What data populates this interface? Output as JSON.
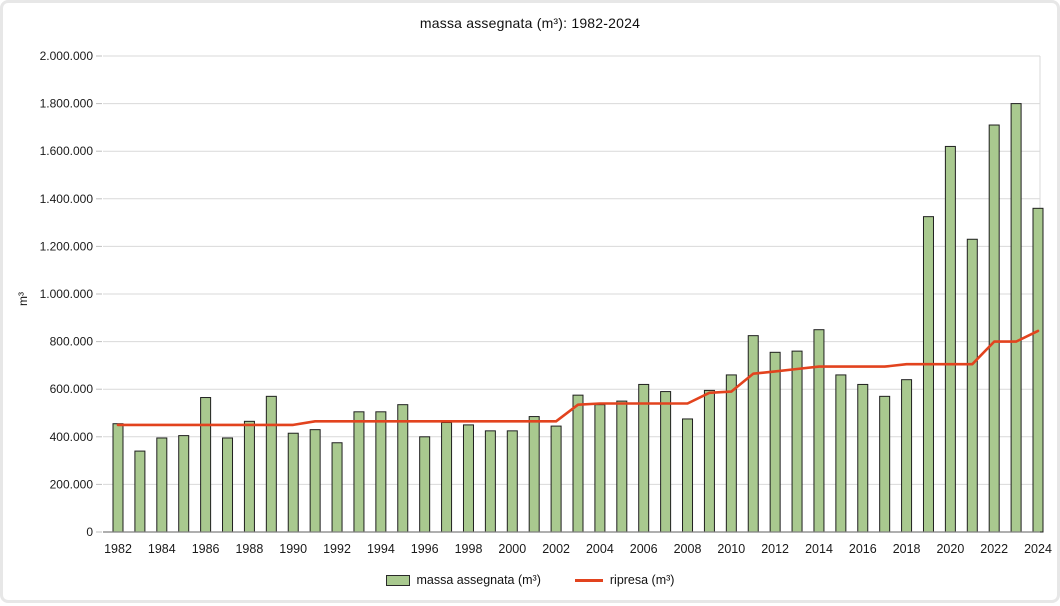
{
  "chart": {
    "title": "massa assegnata (m³): 1982-2024",
    "y_axis_label": "m³",
    "legend": [
      {
        "label": "massa assegnata (m³)",
        "swatch": "bar-swatch",
        "color": "#a9c98f"
      },
      {
        "label": "ripresa (m³)",
        "swatch": "line-swatch",
        "color": "#e2431e"
      }
    ]
  },
  "chart_data": {
    "type": "bar",
    "title": "massa assegnata (m³): 1982-2024",
    "xlabel": "",
    "ylabel": "m³",
    "ylim": [
      0,
      2000000
    ],
    "y_tick_step": 200000,
    "x_label_every": 2,
    "grid": "horizontal",
    "legend_position": "bottom",
    "number_format": "it-IT (dot thousands separator)",
    "categories": [
      1982,
      1983,
      1984,
      1985,
      1986,
      1987,
      1988,
      1989,
      1990,
      1991,
      1992,
      1993,
      1994,
      1995,
      1996,
      1997,
      1998,
      1999,
      2000,
      2001,
      2002,
      2003,
      2004,
      2005,
      2006,
      2007,
      2008,
      2009,
      2010,
      2011,
      2012,
      2013,
      2014,
      2015,
      2016,
      2017,
      2018,
      2019,
      2020,
      2021,
      2022,
      2023,
      2024
    ],
    "series": [
      {
        "name": "massa assegnata (m³)",
        "type": "bar",
        "color": "#a9c98f",
        "border_color": "#1f1f1f",
        "values": [
          455000,
          340000,
          395000,
          405000,
          565000,
          395000,
          465000,
          570000,
          415000,
          430000,
          375000,
          505000,
          505000,
          535000,
          400000,
          460000,
          450000,
          425000,
          425000,
          485000,
          445000,
          575000,
          535000,
          550000,
          620000,
          590000,
          475000,
          595000,
          660000,
          825000,
          755000,
          760000,
          850000,
          660000,
          620000,
          570000,
          640000,
          1325000,
          1620000,
          1230000,
          1710000,
          1800000,
          1360000
        ]
      },
      {
        "name": "ripresa (m³)",
        "type": "line",
        "color": "#e2431e",
        "values": [
          450000,
          450000,
          450000,
          450000,
          450000,
          450000,
          450000,
          450000,
          450000,
          465000,
          465000,
          465000,
          465000,
          465000,
          465000,
          465000,
          465000,
          465000,
          465000,
          465000,
          465000,
          535000,
          540000,
          540000,
          540000,
          540000,
          540000,
          585000,
          590000,
          665000,
          675000,
          685000,
          695000,
          695000,
          695000,
          695000,
          705000,
          705000,
          705000,
          705000,
          800000,
          800000,
          845000
        ]
      }
    ],
    "colors": {
      "gridline": "#d9d9d9",
      "axis_line": "#7f7f7f",
      "tick_mark": "#bfbfbf",
      "text": "#1a1a1a",
      "background": "#ffffff"
    }
  }
}
